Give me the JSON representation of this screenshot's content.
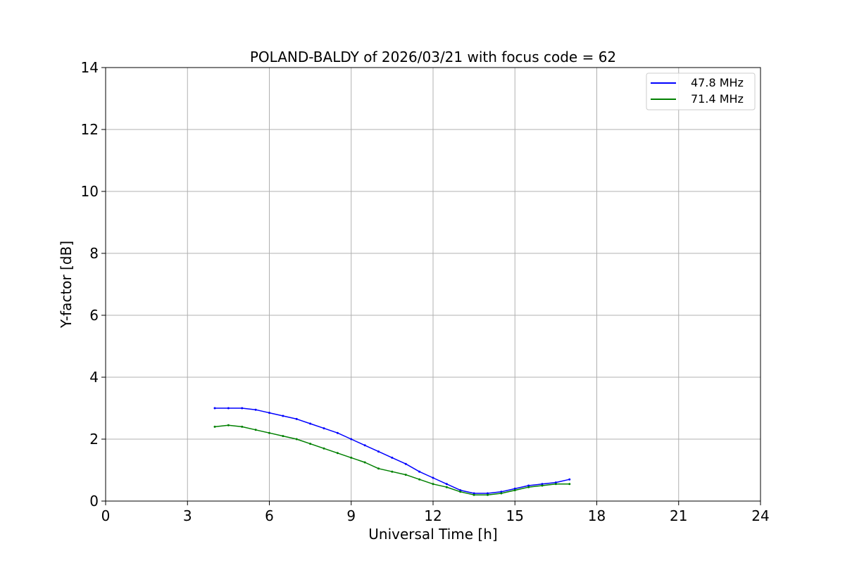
{
  "chart_data": {
    "type": "line",
    "title": "POLAND-BALDY of 2026/03/21 with focus code = 62",
    "xlabel": "Universal Time [h]",
    "ylabel": "Y-factor [dB]",
    "xlim": [
      0,
      24
    ],
    "ylim": [
      0,
      14
    ],
    "xticks": [
      0,
      3,
      6,
      9,
      12,
      15,
      18,
      21,
      24
    ],
    "yticks": [
      0,
      2,
      4,
      6,
      8,
      10,
      12,
      14
    ],
    "grid": true,
    "legend_position": "top-right",
    "series": [
      {
        "name": "47.8 MHz",
        "color": "#0000ff",
        "x": [
          4.0,
          4.5,
          5.0,
          5.5,
          6.0,
          6.5,
          7.0,
          7.5,
          8.0,
          8.5,
          9.0,
          9.5,
          10.0,
          10.5,
          11.0,
          11.5,
          12.0,
          12.5,
          13.0,
          13.5,
          14.0,
          14.5,
          15.0,
          15.5,
          16.0,
          16.5,
          17.0
        ],
        "values": [
          3.0,
          3.0,
          3.0,
          2.95,
          2.85,
          2.75,
          2.65,
          2.5,
          2.35,
          2.2,
          2.0,
          1.8,
          1.6,
          1.4,
          1.2,
          0.95,
          0.75,
          0.55,
          0.35,
          0.25,
          0.25,
          0.3,
          0.4,
          0.5,
          0.55,
          0.6,
          0.7
        ]
      },
      {
        "name": "71.4 MHz",
        "color": "#008000",
        "x": [
          4.0,
          4.5,
          5.0,
          5.5,
          6.0,
          6.5,
          7.0,
          7.5,
          8.0,
          8.5,
          9.0,
          9.5,
          10.0,
          10.5,
          11.0,
          11.5,
          12.0,
          12.5,
          13.0,
          13.5,
          14.0,
          14.5,
          15.0,
          15.5,
          16.0,
          16.5,
          17.0
        ],
        "values": [
          2.4,
          2.45,
          2.4,
          2.3,
          2.2,
          2.1,
          2.0,
          1.85,
          1.7,
          1.55,
          1.4,
          1.25,
          1.05,
          0.95,
          0.85,
          0.7,
          0.55,
          0.45,
          0.3,
          0.2,
          0.2,
          0.25,
          0.35,
          0.45,
          0.5,
          0.55,
          0.55
        ]
      }
    ]
  }
}
